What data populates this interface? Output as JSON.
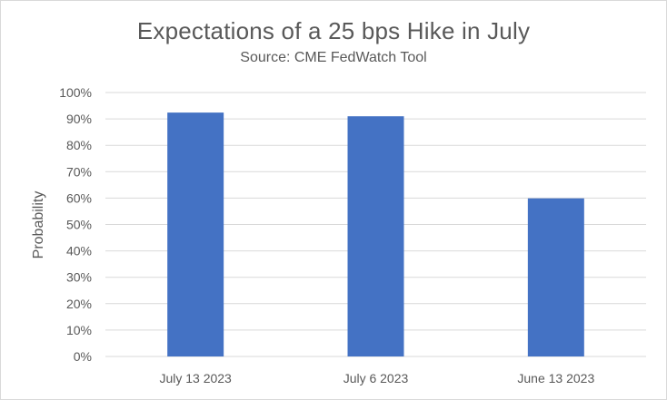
{
  "chart_data": {
    "type": "bar",
    "title": "Expectations of a 25 bps Hike in July",
    "subtitle": "Source: CME FedWatch Tool",
    "xlabel": "",
    "ylabel": "Probability",
    "categories": [
      "July 13 2023",
      "July 6 2023",
      "June 13 2023"
    ],
    "values": [
      92.4,
      91.0,
      59.9
    ],
    "ylim": [
      0,
      100
    ],
    "yticks": [
      0,
      10,
      20,
      30,
      40,
      50,
      60,
      70,
      80,
      90,
      100
    ],
    "ytick_labels": [
      "0%",
      "10%",
      "20%",
      "30%",
      "40%",
      "50%",
      "60%",
      "70%",
      "80%",
      "90%",
      "100%"
    ],
    "grid": true,
    "legend": "none",
    "bar_color": "#4472c4",
    "grid_color": "#d9d9d9"
  }
}
